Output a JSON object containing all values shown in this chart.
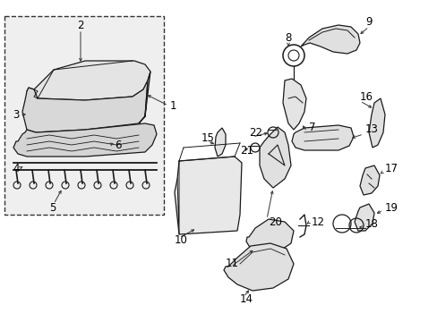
{
  "bg": "#ffffff",
  "lc": "#1a1a1a",
  "fc": "#f0f0f0",
  "tc": "#000000",
  "fs": 8.5,
  "fw": 4.89,
  "fh": 3.6,
  "dpi": 100
}
